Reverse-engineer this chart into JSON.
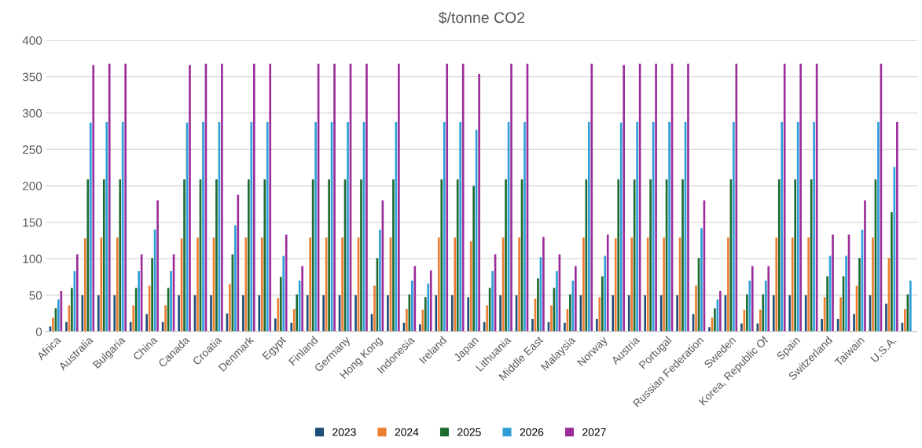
{
  "chart_data": {
    "type": "bar",
    "title": "$/tonne CO2",
    "categories": [
      "Africa",
      null,
      "Australia",
      null,
      "Bulgaria",
      null,
      "China",
      null,
      "Canada",
      null,
      "Croatia",
      null,
      "Denmark",
      null,
      "Egypt",
      null,
      "Finland",
      null,
      "Germany",
      null,
      "Hong Kong",
      null,
      "Indonesia",
      null,
      "Ireland",
      null,
      "Japan",
      null,
      "Lithuania",
      null,
      "Middle East",
      null,
      "Malaysia",
      null,
      "Norway",
      null,
      "Austria",
      null,
      "Portugal",
      null,
      "Russian Federation",
      null,
      "Sweden",
      null,
      "Korea, Republic Of",
      null,
      "Spain",
      null,
      "Switzerland",
      null,
      "Taiwain",
      null,
      "U.S.A.",
      null
    ],
    "series": [
      {
        "name": "2023",
        "color": "#1f4e79",
        "values": [
          7,
          13,
          50,
          50,
          50,
          13,
          24,
          13,
          50,
          50,
          50,
          25,
          50,
          50,
          18,
          12,
          50,
          50,
          50,
          50,
          24,
          50,
          12,
          10,
          50,
          50,
          47,
          13,
          50,
          50,
          17,
          13,
          12,
          50,
          17,
          50,
          50,
          50,
          50,
          50,
          24,
          6,
          50,
          11,
          11,
          50,
          50,
          50,
          17,
          17,
          24,
          50,
          38,
          12
        ]
      },
      {
        "name": "2024",
        "color": "#ed7d31",
        "values": [
          19,
          36,
          128,
          129,
          129,
          36,
          63,
          36,
          128,
          129,
          129,
          65,
          129,
          129,
          46,
          31,
          129,
          129,
          129,
          129,
          63,
          129,
          31,
          30,
          129,
          129,
          124,
          36,
          129,
          129,
          45,
          36,
          31,
          129,
          47,
          128,
          129,
          129,
          129,
          129,
          63,
          19,
          129,
          30,
          30,
          129,
          129,
          129,
          47,
          47,
          63,
          129,
          101,
          31
        ]
      },
      {
        "name": "2025",
        "color": "#1e6b30",
        "values": [
          32,
          60,
          209,
          209,
          209,
          60,
          101,
          60,
          209,
          209,
          209,
          106,
          209,
          209,
          75,
          51,
          209,
          209,
          209,
          209,
          101,
          209,
          51,
          47,
          209,
          209,
          200,
          60,
          209,
          209,
          73,
          60,
          51,
          209,
          76,
          209,
          209,
          209,
          209,
          209,
          101,
          32,
          209,
          51,
          51,
          209,
          209,
          209,
          76,
          76,
          101,
          209,
          164,
          51
        ]
      },
      {
        "name": "2026",
        "color": "#2e9fd8",
        "values": [
          44,
          83,
          287,
          288,
          288,
          83,
          140,
          83,
          287,
          288,
          288,
          146,
          288,
          288,
          104,
          70,
          288,
          288,
          288,
          288,
          140,
          288,
          70,
          66,
          288,
          288,
          277,
          83,
          288,
          288,
          102,
          83,
          70,
          288,
          104,
          287,
          288,
          288,
          288,
          288,
          142,
          44,
          288,
          70,
          70,
          288,
          288,
          288,
          104,
          104,
          140,
          288,
          226,
          70
        ]
      },
      {
        "name": "2027",
        "color": "#9b2d9b",
        "values": [
          56,
          106,
          366,
          368,
          368,
          106,
          180,
          106,
          366,
          368,
          368,
          188,
          368,
          368,
          133,
          90,
          368,
          368,
          368,
          368,
          180,
          368,
          90,
          84,
          368,
          368,
          354,
          106,
          368,
          368,
          130,
          106,
          90,
          368,
          133,
          366,
          368,
          368,
          368,
          368,
          180,
          56,
          368,
          90,
          90,
          368,
          368,
          368,
          133,
          133,
          180,
          368,
          288,
          null
        ]
      }
    ],
    "ylim": [
      0,
      400
    ],
    "yticks": [
      0,
      50,
      100,
      150,
      200,
      250,
      300,
      350,
      400
    ],
    "grid": "y",
    "legend": "bottom"
  }
}
